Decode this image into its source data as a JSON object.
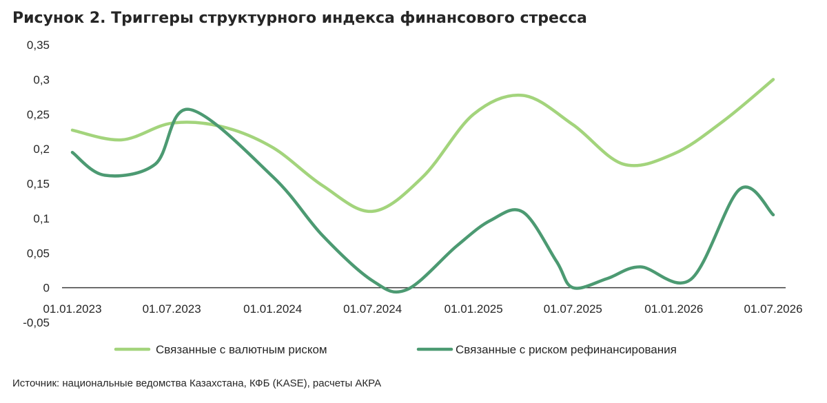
{
  "title": "Рисунок 2. Триггеры структурного индекса финансового стресса",
  "source": "Источник: национальные ведомства Казахстана, КФБ (KASE), расчеты АКРА",
  "chart_data": {
    "type": "line",
    "title": "Рисунок 2. Триггеры структурного индекса финансового стресса",
    "xlabel": "",
    "ylabel": "",
    "ylim": [
      -0.05,
      0.35
    ],
    "y_ticks": [
      "-0,05",
      "0",
      "0,05",
      "0,1",
      "0,15",
      "0,2",
      "0,25",
      "0,3",
      "0,35"
    ],
    "y_tick_values": [
      -0.05,
      0,
      0.05,
      0.1,
      0.15,
      0.2,
      0.25,
      0.3,
      0.35
    ],
    "x_tick_labels": [
      "01.01.2023",
      "01.07.2023",
      "01.01.2024",
      "01.07.2024",
      "01.01.2025",
      "01.07.2025",
      "01.01.2026",
      "01.07.2026"
    ],
    "grid": false,
    "legend": "bottom",
    "series": [
      {
        "name": "Связанные с валютным риском",
        "color": "#a3d47c",
        "points": [
          [
            "01.01.2023",
            0.227
          ],
          [
            "01.04.2023",
            0.213
          ],
          [
            "01.07.2023",
            0.237
          ],
          [
            "01.10.2023",
            0.232
          ],
          [
            "01.01.2024",
            0.202
          ],
          [
            "01.04.2024",
            0.147
          ],
          [
            "01.07.2024",
            0.11
          ],
          [
            "01.10.2024",
            0.16
          ],
          [
            "01.01.2025",
            0.25
          ],
          [
            "01.04.2025",
            0.277
          ],
          [
            "01.07.2025",
            0.235
          ],
          [
            "01.10.2025",
            0.178
          ],
          [
            "01.01.2026",
            0.193
          ],
          [
            "01.04.2026",
            0.24
          ],
          [
            "01.07.2026",
            0.3
          ]
        ]
      },
      {
        "name": "Связанные с риском рефинансирования",
        "color": "#4c9a72",
        "points": [
          [
            "01.01.2023",
            0.195
          ],
          [
            "01.03.2023",
            0.162
          ],
          [
            "01.06.2023",
            0.178
          ],
          [
            "01.08.2023",
            0.257
          ],
          [
            "01.01.2024",
            0.16
          ],
          [
            "01.04.2024",
            0.075
          ],
          [
            "01.07.2024",
            0.01
          ],
          [
            "01.09.2024",
            -0.003
          ],
          [
            "01.12.2024",
            0.06
          ],
          [
            "01.02.2025",
            0.097
          ],
          [
            "01.04.2025",
            0.109
          ],
          [
            "01.06.2025",
            0.038
          ],
          [
            "01.07.2025",
            0.0
          ],
          [
            "01.09.2025",
            0.013
          ],
          [
            "01.11.2025",
            0.03
          ],
          [
            "01.02.2026",
            0.012
          ],
          [
            "01.05.2026",
            0.142
          ],
          [
            "01.07.2026",
            0.105
          ]
        ]
      }
    ]
  }
}
